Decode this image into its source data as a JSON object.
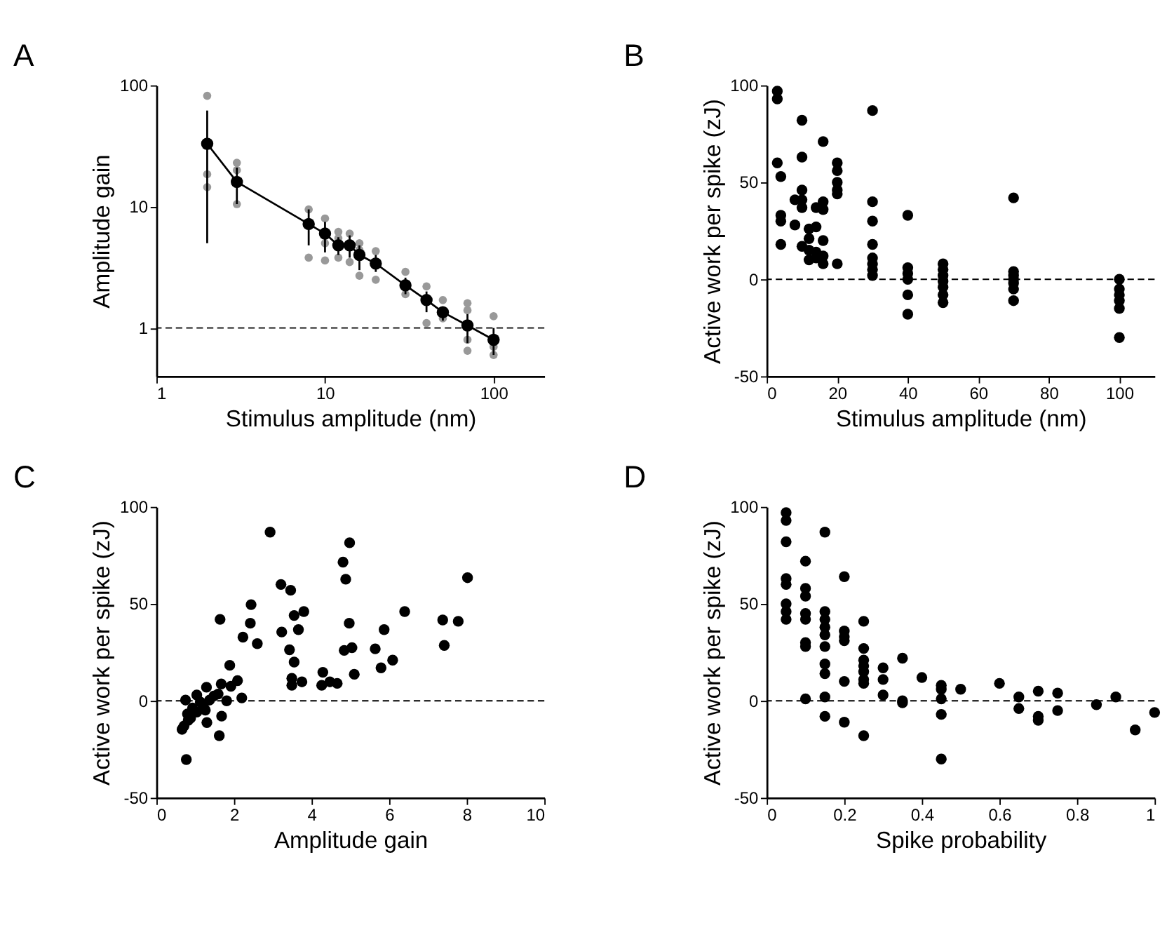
{
  "chart_data": [
    {
      "type": "scatter",
      "title": "A",
      "xlabel": "Stimulus amplitude (nm)",
      "ylabel": "Amplitude gain",
      "log": "xy",
      "xlim": [
        1,
        200
      ],
      "ylim": [
        0.4,
        100
      ],
      "xticks": [
        1,
        10,
        100
      ],
      "yticks": [
        1,
        10,
        100
      ],
      "ref_lines": [
        {
          "axis": "y",
          "value": 1,
          "line_style": "dashed"
        }
      ],
      "series": [
        {
          "type": "scatter",
          "color": "#999999",
          "marker": "circle",
          "x": [
            2,
            2,
            2,
            3,
            3,
            3,
            8,
            8,
            10,
            10,
            10,
            12,
            12,
            12,
            14,
            14,
            16,
            16,
            16,
            20,
            20,
            30,
            30,
            40,
            40,
            50,
            50,
            70,
            70,
            70,
            70,
            100,
            100,
            100
          ],
          "values": [
            82,
            18.5,
            14.5,
            23,
            20,
            10.5,
            9.5,
            3.8,
            8,
            5,
            3.6,
            6.2,
            5.5,
            3.8,
            6,
            3.5,
            5,
            4.4,
            2.7,
            4.3,
            2.5,
            2.9,
            1.9,
            2.2,
            1.1,
            1.7,
            1.2,
            1.6,
            1.4,
            0.8,
            0.65,
            1.25,
            0.7,
            0.6
          ]
        },
        {
          "type": "line",
          "color": "#000000",
          "marker": "circle",
          "x": [
            2,
            3,
            8,
            10,
            12,
            14,
            16,
            20,
            30,
            40,
            50,
            70,
            100
          ],
          "values": [
            33,
            16,
            7.2,
            6,
            4.8,
            4.8,
            4,
            3.4,
            2.25,
            1.7,
            1.35,
            1.05,
            0.8
          ],
          "errors": [
            [
              5,
              62
            ],
            [
              10.5,
              21
            ],
            [
              4.8,
              9.5
            ],
            [
              4.2,
              7.5
            ],
            [
              4,
              5.6
            ],
            [
              3.8,
              5.8
            ],
            [
              3,
              4.8
            ],
            [
              2.9,
              4
            ],
            [
              1.9,
              2.6
            ],
            [
              1.35,
              2
            ],
            [
              1.15,
              1.5
            ],
            [
              0.75,
              1.3
            ],
            [
              0.6,
              1
            ]
          ]
        }
      ]
    },
    {
      "type": "scatter",
      "title": "B",
      "xlabel": "Stimulus amplitude (nm)",
      "ylabel": "Active work per spike (zJ)",
      "xlim": [
        0,
        110
      ],
      "ylim": [
        -50,
        100
      ],
      "xticks": [
        0,
        20,
        40,
        60,
        80,
        100
      ],
      "yticks": [
        -50,
        0,
        50,
        100
      ],
      "ref_lines": [
        {
          "axis": "y",
          "value": 0,
          "line_style": "dashed"
        }
      ],
      "series": [
        {
          "color": "#000000",
          "marker": "circle",
          "x": [
            3,
            3,
            3,
            4,
            4,
            4,
            4,
            8,
            8,
            10,
            10,
            10,
            10,
            10,
            10,
            12,
            12,
            12,
            12,
            14,
            14,
            14,
            14,
            16,
            16,
            16,
            16,
            16,
            16,
            20,
            20,
            20,
            20,
            20,
            20,
            30,
            30,
            30,
            30,
            30,
            30,
            30,
            30,
            40,
            40,
            40,
            40,
            40,
            40,
            50,
            50,
            50,
            50,
            50,
            50,
            50,
            70,
            70,
            70,
            70,
            70,
            70,
            70,
            100,
            100,
            100,
            100,
            100,
            100
          ],
          "values": [
            97,
            93,
            60,
            53,
            33,
            30,
            18,
            41,
            28,
            82,
            63,
            46,
            41,
            37,
            17,
            26,
            21,
            15,
            10,
            37,
            27,
            14,
            11,
            71,
            40,
            36,
            20,
            12,
            8,
            60,
            56,
            50,
            46,
            44,
            8,
            87,
            40,
            30,
            18,
            11,
            8,
            5,
            2,
            33,
            6,
            3,
            0,
            -8,
            -18,
            8,
            5,
            2,
            -1,
            -4,
            -8,
            -12,
            42,
            4,
            2,
            0,
            -2,
            -5,
            -11,
            0,
            -5,
            -8,
            -11,
            -15,
            -30
          ]
        }
      ]
    },
    {
      "type": "scatter",
      "title": "C",
      "xlabel": "Amplitude gain",
      "ylabel": "Active work per spike (zJ)",
      "xlim": [
        0,
        10
      ],
      "ylim": [
        -50,
        100
      ],
      "xticks": [
        0,
        2,
        4,
        6,
        8,
        10
      ],
      "yticks": [
        -50,
        0,
        50,
        100
      ],
      "ref_lines": [
        {
          "axis": "y",
          "value": 0,
          "line_style": "dashed"
        }
      ],
      "series": [
        {
          "color": "#000000",
          "marker": "circle",
          "x": [
            2.93,
            4.98,
            4.81,
            4.88,
            8.02,
            3.21,
            3.46,
            2.44,
            1.64,
            2.42,
            3.55,
            3.8,
            4.97,
            6.4,
            7.38,
            7.78,
            3.23,
            3.66,
            5.87,
            2.23,
            2.6,
            7.42,
            3.43,
            4.84,
            5.04,
            5.64,
            3.55,
            6.09,
            5.79,
            1.89,
            4.29,
            5.1,
            3.49,
            3.75,
            3.49,
            4.26,
            4.47,
            4.66,
            0.75,
            1.04,
            1.29,
            1.67,
            2.09,
            1.92,
            2.2,
            1.81,
            1.48,
            1.21,
            0.93,
            0.8,
            0.82,
            0.71,
            0.66,
            1.3,
            1.68,
            1.62,
            0.77,
            1.13,
            1.37,
            1.59,
            1.26,
            1.04,
            0.88
          ],
          "values": [
            87,
            81.5,
            71.5,
            62.7,
            63.5,
            60,
            57,
            49.6,
            42,
            40,
            44,
            46,
            40,
            46,
            41.7,
            41,
            35.5,
            36.7,
            36.7,
            32.8,
            29.5,
            28.6,
            26.3,
            26,
            27.4,
            26.8,
            20,
            21,
            17,
            18.3,
            14.7,
            13.7,
            11.6,
            9.8,
            8,
            8,
            9.8,
            9,
            0.4,
            3,
            7,
            8.7,
            10.4,
            7.5,
            1.5,
            0,
            2.5,
            -2,
            -3.7,
            -6.8,
            -10,
            -13,
            -14.7,
            -11.2,
            -7.9,
            -18,
            -30.3,
            -0.6,
            0.4,
            3.5,
            -4.8,
            -5.8,
            -8.9
          ]
        }
      ]
    },
    {
      "type": "scatter",
      "title": "D",
      "xlabel": "Spike probability",
      "ylabel": "Active work per spike (zJ)",
      "xlim": [
        0,
        1
      ],
      "ylim": [
        -50,
        100
      ],
      "xticks": [
        0,
        0.2,
        0.4,
        0.6,
        0.8,
        1
      ],
      "yticks": [
        -50,
        0,
        50,
        100
      ],
      "ref_lines": [
        {
          "axis": "y",
          "value": 0,
          "line_style": "dashed"
        }
      ],
      "series": [
        {
          "color": "#000000",
          "marker": "circle",
          "x": [
            0.05,
            0.05,
            0.05,
            0.05,
            0.05,
            0.05,
            0.05,
            0.05,
            0.1,
            0.1,
            0.1,
            0.1,
            0.1,
            0.1,
            0.1,
            0.1,
            0.15,
            0.15,
            0.15,
            0.15,
            0.15,
            0.15,
            0.15,
            0.15,
            0.15,
            0.15,
            0.2,
            0.2,
            0.2,
            0.2,
            0.2,
            0.2,
            0.25,
            0.25,
            0.25,
            0.25,
            0.25,
            0.25,
            0.25,
            0.25,
            0.3,
            0.3,
            0.3,
            0.35,
            0.35,
            0.35,
            0.4,
            0.45,
            0.45,
            0.45,
            0.45,
            0.45,
            0.5,
            0.6,
            0.65,
            0.65,
            0.7,
            0.7,
            0.7,
            0.75,
            0.75,
            0.85,
            0.9,
            0.95,
            1
          ],
          "values": [
            97,
            93,
            82,
            63,
            60,
            50,
            46,
            42,
            72,
            58,
            54,
            45,
            42,
            30,
            28,
            1,
            87,
            46,
            42,
            38,
            34,
            28,
            19,
            14,
            2,
            -8,
            64,
            36,
            33,
            31,
            10,
            -11,
            41,
            27,
            21,
            18,
            15,
            11,
            9,
            -18,
            17,
            11,
            3,
            22,
            0,
            -1,
            12,
            8,
            6,
            1,
            -7,
            -30,
            6,
            9,
            2,
            -4,
            5,
            -8,
            -10,
            4,
            -5,
            -2,
            2,
            -15,
            -6
          ]
        }
      ]
    }
  ]
}
